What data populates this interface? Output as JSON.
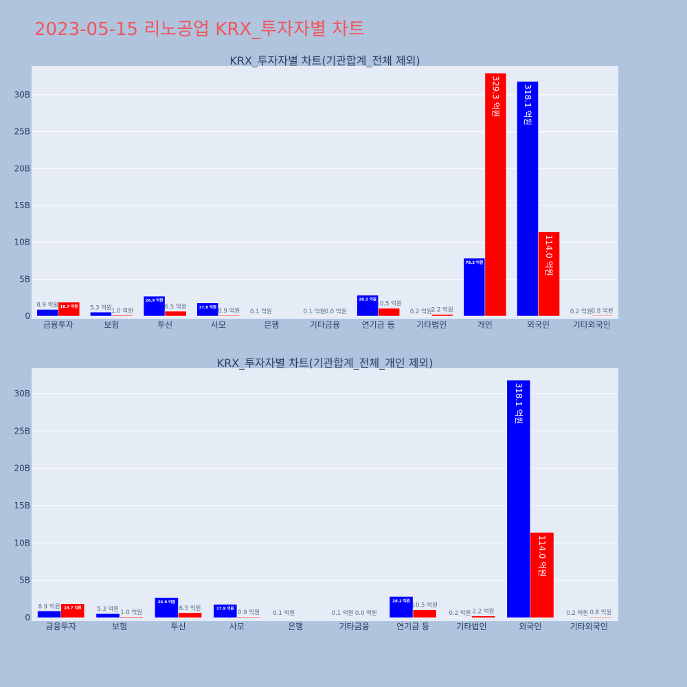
{
  "page": {
    "title": "2023-05-15 리노공업 KRX_투자자별 차트",
    "title_color": "#f2545b",
    "background": "#b0c4de"
  },
  "chart_data": [
    {
      "type": "bar",
      "title": "KRX_투자자별 차트(기관합계_전체 제외)",
      "categories": [
        "금융투자",
        "보험",
        "투신",
        "사모",
        "은행",
        "기타금융",
        "연기금 등",
        "기타법인",
        "개인",
        "외국인",
        "기타외국인"
      ],
      "series": [
        {
          "color": "#0000ff",
          "values": [
            0.89,
            0.53,
            2.69,
            1.78,
            0.01,
            0.01,
            2.82,
            0.02,
            7.83,
            31.81,
            0.02
          ],
          "labels": [
            "8.9 억원",
            "5.3 억원",
            "26.9 억원",
            "17.8 억원",
            "0.1 억원",
            "0.1 억원",
            "28.2 억원",
            "0.2 억원",
            "78.3 억원",
            "318.1 억원",
            "0.2 억원"
          ]
        },
        {
          "color": "#ff0000",
          "values": [
            1.87,
            0.1,
            0.65,
            0.09,
            0,
            0.0,
            1.05,
            0.22,
            32.93,
            11.4,
            0.08
          ],
          "labels": [
            "18.7 억원",
            "1.0 억원",
            "6.5 억원",
            "0.9 억원",
            "",
            "0.0 억원",
            "10.5 억원",
            "2.2 억원",
            "329.3 억원",
            "114.0 억원",
            "0.8 억원"
          ]
        }
      ],
      "yticks": [
        0,
        5,
        10,
        15,
        20,
        25,
        30
      ],
      "ytick_labels": [
        "0",
        "5B",
        "10B",
        "15B",
        "20B",
        "25B",
        "30B"
      ],
      "ylim": [
        0,
        33.9
      ],
      "grid": true,
      "value_unit": "B"
    },
    {
      "type": "bar",
      "title": "KRX_투자자별 차트(기관합계_전체_개인 제외)",
      "categories": [
        "금융투자",
        "보험",
        "투신",
        "사모",
        "은행",
        "기타금융",
        "연기금 등",
        "기타법인",
        "외국인",
        "기타외국인"
      ],
      "series": [
        {
          "color": "#0000ff",
          "values": [
            0.89,
            0.53,
            2.69,
            1.78,
            0.01,
            0.01,
            2.82,
            0.02,
            31.81,
            0.02
          ],
          "labels": [
            "8.9 억원",
            "5.3 억원",
            "26.9 억원",
            "17.8 억원",
            "0.1 억원",
            "0.1 억원",
            "28.2 억원",
            "0.2 억원",
            "318.1 억원",
            "0.2 억원"
          ]
        },
        {
          "color": "#ff0000",
          "values": [
            1.87,
            0.1,
            0.65,
            0.09,
            0,
            0.0,
            1.05,
            0.22,
            11.4,
            0.08
          ],
          "labels": [
            "18.7 억원",
            "1.0 억원",
            "6.5 억원",
            "0.9 억원",
            "",
            "0.0 억원",
            "10.5 억원",
            "2.2 억원",
            "114.0 억원",
            "0.8 억원"
          ]
        }
      ],
      "yticks": [
        0,
        5,
        10,
        15,
        20,
        25,
        30
      ],
      "ytick_labels": [
        "0",
        "5B",
        "10B",
        "15B",
        "20B",
        "25B",
        "30B"
      ],
      "ylim": [
        0,
        33.4
      ],
      "grid": true,
      "value_unit": "B"
    }
  ]
}
